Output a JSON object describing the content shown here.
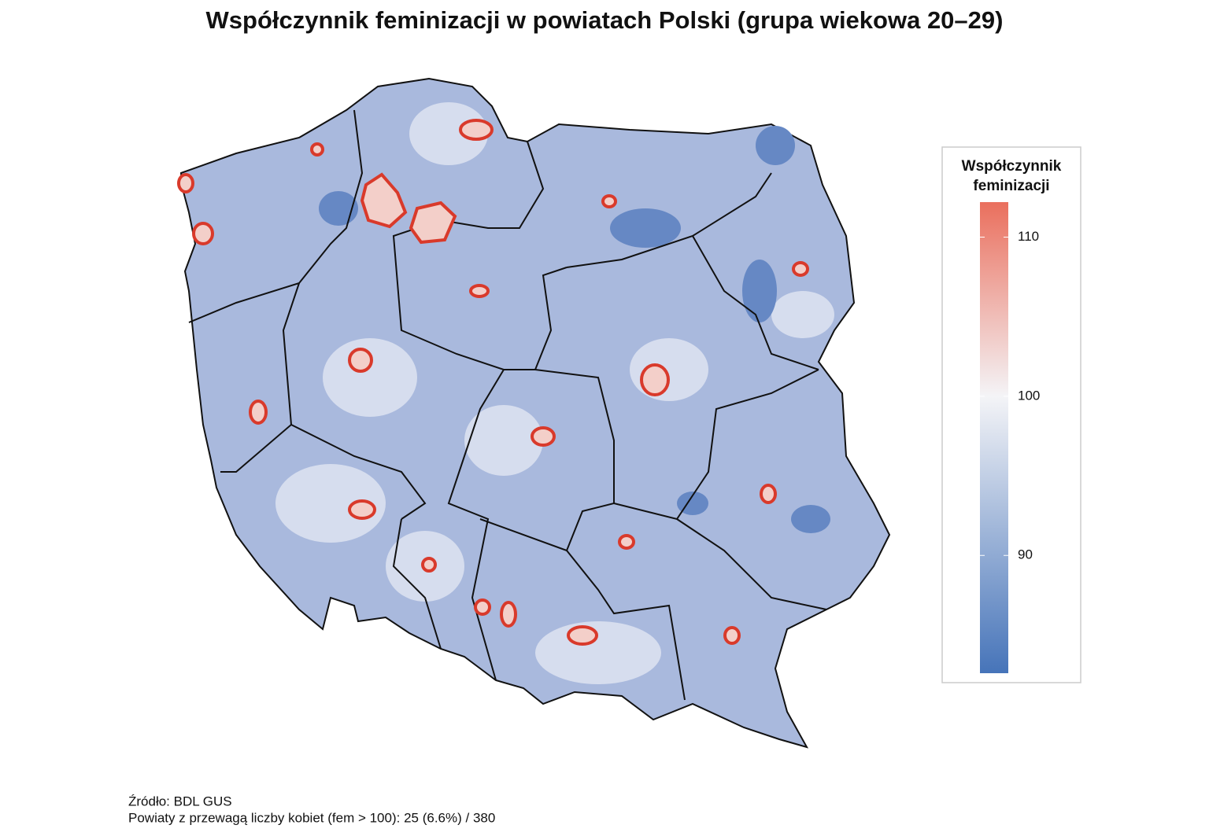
{
  "title": "Współczynnik feminizacji w powiatach Polski (grupa wiekowa 20–29)",
  "legend": {
    "title": [
      "Współczynnik",
      "feminizacji"
    ],
    "lim": [
      82.6,
      112.2
    ],
    "midpoint": 100,
    "colors": [
      "#4674b9",
      "#f4f4f7",
      "#ea6f5d"
    ],
    "ticks": [
      90,
      100,
      110
    ]
  },
  "caption": [
    "Źródło: BDL GUS",
    "Powiaty z przewagą liczby kobiet (fem > 100): 25 (6.6%) / 380"
  ]
}
